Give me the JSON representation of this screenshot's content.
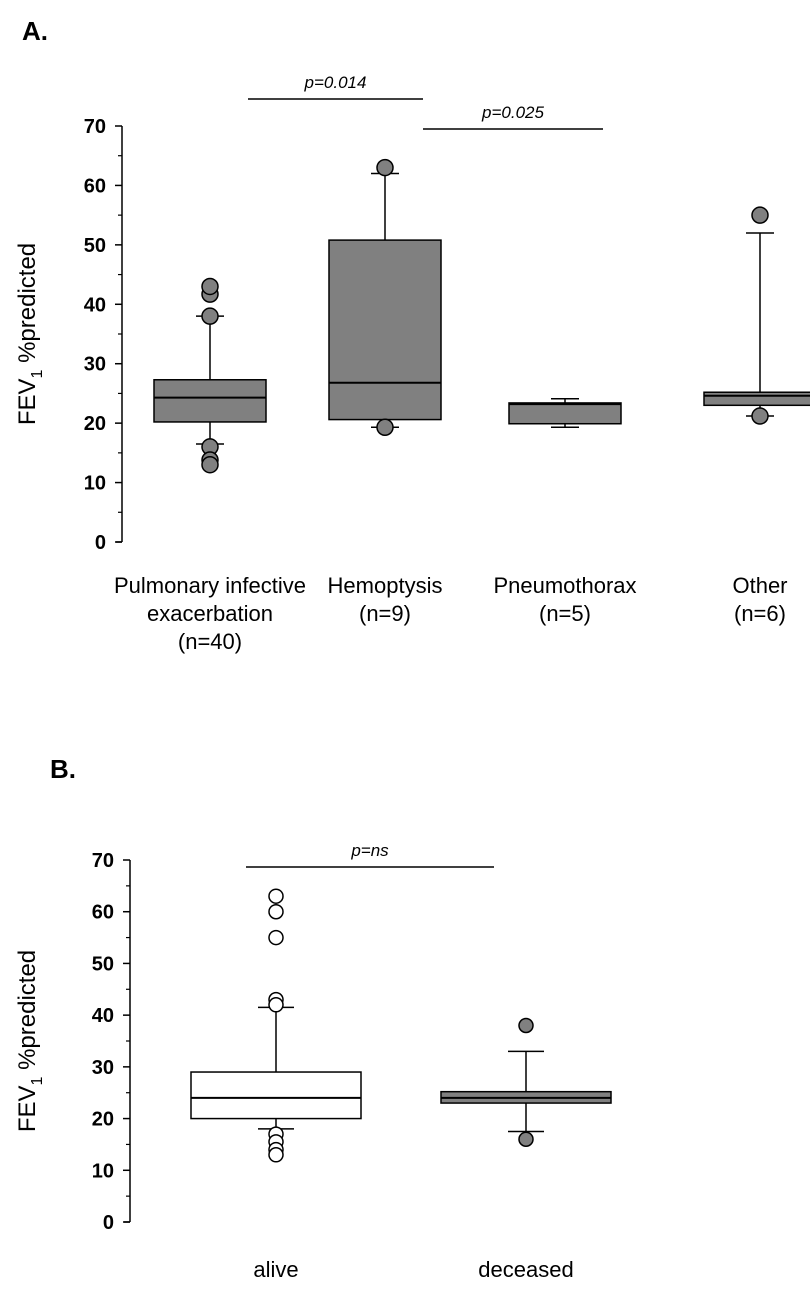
{
  "chart_data": [
    {
      "panel_label": "A.",
      "type": "box",
      "ylabel_main": "FEV",
      "ylabel_sub": "1",
      "ylabel_rest": " %predicted",
      "ylim": [
        0,
        70
      ],
      "yticks": [
        0,
        10,
        20,
        30,
        40,
        50,
        60,
        70
      ],
      "categories": [
        {
          "lines": [
            "Pulmonary infective",
            "exacerbation",
            "(n=40)"
          ]
        },
        {
          "lines": [
            "Hemoptysis",
            "(n=9)"
          ]
        },
        {
          "lines": [
            "Pneumothorax",
            "(n=5)"
          ]
        },
        {
          "lines": [
            "Other",
            "(n=6)"
          ]
        }
      ],
      "boxes": [
        {
          "q1": 20.2,
          "median": 24.3,
          "q3": 27.3,
          "whisker_low": 16.5,
          "whisker_high": 38,
          "outliers": [
            38,
            41.7,
            43,
            16,
            13.8,
            13
          ],
          "fill": "#808080",
          "outlier_fill": "#808080"
        },
        {
          "q1": 20.6,
          "median": 26.8,
          "q3": 50.8,
          "whisker_low": 19.3,
          "whisker_high": 62,
          "outliers": [
            63,
            19.3
          ],
          "fill": "#808080",
          "outlier_fill": "#808080"
        },
        {
          "q1": 19.9,
          "median": 23.2,
          "q3": 23.4,
          "whisker_low": 19.3,
          "whisker_high": 24.1,
          "outliers": [],
          "fill": "#808080",
          "outlier_fill": "#808080"
        },
        {
          "q1": 23.0,
          "median": 24.6,
          "q3": 25.2,
          "whisker_low": 21.2,
          "whisker_high": 52,
          "outliers": [
            55,
            21.2
          ],
          "fill": "#808080",
          "outlier_fill": "#808080"
        }
      ],
      "comparisons": [
        {
          "from": 0,
          "to": 1,
          "label": "p=0.014"
        },
        {
          "from": 1,
          "to": 2,
          "label": "p=0.025"
        }
      ]
    },
    {
      "panel_label": "B.",
      "type": "box",
      "ylabel_main": "FEV",
      "ylabel_sub": "1",
      "ylabel_rest": " %predicted",
      "ylim": [
        0,
        70
      ],
      "yticks": [
        0,
        10,
        20,
        30,
        40,
        50,
        60,
        70
      ],
      "categories": [
        {
          "lines": [
            "alive"
          ]
        },
        {
          "lines": [
            "deceased"
          ]
        }
      ],
      "boxes": [
        {
          "q1": 20,
          "median": 24,
          "q3": 29,
          "whisker_low": 18,
          "whisker_high": 41.5,
          "outliers": [
            63,
            60,
            55,
            43,
            42,
            17,
            15.5,
            14,
            13
          ],
          "fill": "#ffffff",
          "outlier_fill": "#ffffff"
        },
        {
          "q1": 23,
          "median": 24,
          "q3": 25.2,
          "whisker_low": 17.5,
          "whisker_high": 33,
          "outliers": [
            38,
            16
          ],
          "fill": "#808080",
          "outlier_fill": "#808080"
        }
      ],
      "comparisons": [
        {
          "from": 0,
          "to": 1,
          "label": "p=ns"
        }
      ]
    }
  ]
}
